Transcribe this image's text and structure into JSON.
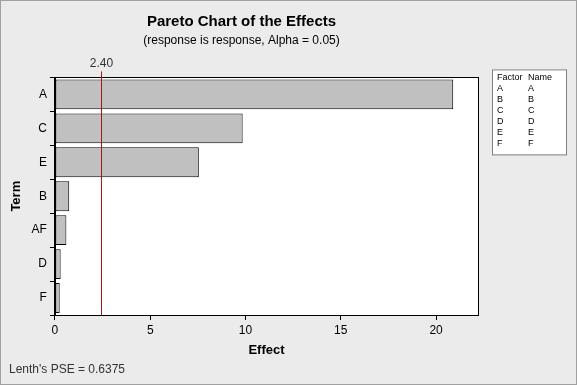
{
  "chart_data": {
    "type": "bar",
    "orientation": "horizontal",
    "title": "Pareto Chart of the Effects",
    "subtitle": "(response is response, Alpha = 0.05)",
    "x_label": "Effect",
    "y_label": "Term",
    "categories": [
      "A",
      "C",
      "E",
      "B",
      "AF",
      "D",
      "F"
    ],
    "values": [
      20.9,
      9.85,
      7.55,
      0.75,
      0.6,
      0.3,
      0.25
    ],
    "color": "#c0c0c0",
    "xlim": [
      0,
      22.2
    ],
    "xticks": [
      0,
      5,
      10,
      15,
      20
    ],
    "grid": false,
    "reference_line": {
      "value": 2.4,
      "label": "2.40"
    },
    "factor_table": {
      "headers": [
        "Factor",
        "Name"
      ],
      "rows": [
        [
          "A",
          "A"
        ],
        [
          "B",
          "B"
        ],
        [
          "C",
          "C"
        ],
        [
          "D",
          "D"
        ],
        [
          "E",
          "E"
        ],
        [
          "F",
          "F"
        ]
      ]
    },
    "footnote": "Lenth's PSE = 0.6375"
  }
}
